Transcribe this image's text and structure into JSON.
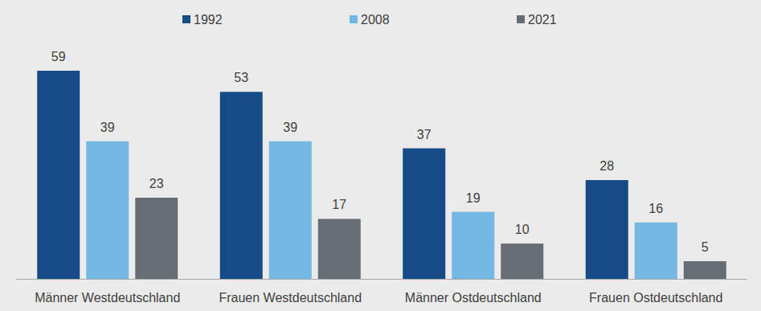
{
  "chart_data": {
    "type": "bar",
    "categories": [
      "Männer Westdeutschland",
      "Frauen Westdeutschland",
      "Männer Ostdeutschland",
      "Frauen Ostdeutschland"
    ],
    "series": [
      {
        "name": "1992",
        "color": "#164b87",
        "values": [
          59,
          53,
          37,
          28
        ]
      },
      {
        "name": "2008",
        "color": "#73b7e2",
        "values": [
          39,
          39,
          19,
          16
        ]
      },
      {
        "name": "2021",
        "color": "#676d74",
        "values": [
          23,
          17,
          10,
          5
        ]
      }
    ],
    "ylim": [
      0,
      59
    ],
    "grid": false,
    "legend": "top",
    "data_labels": true,
    "tick_labels": "x"
  }
}
